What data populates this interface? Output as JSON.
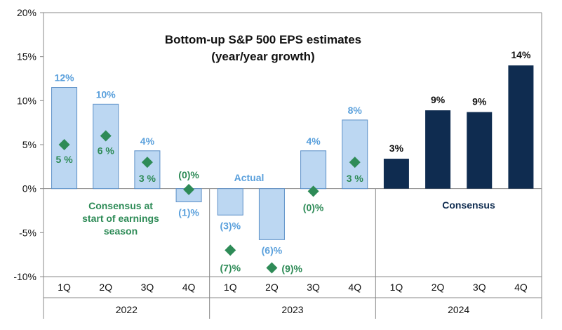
{
  "chart_data": {
    "type": "bar",
    "title": "Bottom-up S&P 500 EPS estimates",
    "subtitle": "(year/year growth)",
    "ylim": [
      -10,
      20
    ],
    "yticks": [
      "-10%",
      "-5%",
      "0%",
      "5%",
      "10%",
      "15%",
      "20%"
    ],
    "ytick_values": [
      -10,
      -5,
      0,
      5,
      10,
      15,
      20
    ],
    "quarters": [
      "1Q",
      "2Q",
      "3Q",
      "4Q",
      "1Q",
      "2Q",
      "3Q",
      "4Q",
      "1Q",
      "2Q",
      "3Q",
      "4Q"
    ],
    "years": [
      "2022",
      "2023",
      "2024"
    ],
    "colors": {
      "actual_fill": "#bcd7f2",
      "actual_edge": "#5b8fc7",
      "actual_label": "#5aa0dc",
      "consensus": "#0f2c50",
      "marker": "#2e8b57"
    },
    "series": [
      {
        "name": "Actual",
        "values": [
          11.5,
          9.6,
          4.3,
          -1.5,
          -3,
          -5.8,
          4.3,
          7.8,
          null,
          null,
          null,
          null
        ],
        "labels": [
          "12%",
          "10%",
          "4%",
          "(1)%",
          "(3)%",
          "(6)%",
          "4%",
          "8%",
          "",
          "",
          "",
          ""
        ]
      },
      {
        "name": "Consensus",
        "values": [
          null,
          null,
          null,
          null,
          null,
          null,
          null,
          null,
          3.4,
          8.9,
          8.7,
          14.0
        ],
        "labels": [
          "",
          "",
          "",
          "",
          "",
          "",
          "",
          "",
          "3%",
          "9%",
          "9%",
          "14%"
        ]
      },
      {
        "name": "Consensus at start of earnings season",
        "values": [
          5,
          6,
          3,
          -0.1,
          -7,
          -9,
          -0.3,
          3,
          null,
          null,
          null,
          null
        ],
        "labels": [
          "5 %",
          "6 %",
          "3 %",
          "(0)%",
          "(7)%",
          "(9)%",
          "(0)%",
          "3 %",
          "",
          "",
          "",
          ""
        ]
      }
    ],
    "annotations": {
      "actual": "Actual",
      "consensus": "Consensus",
      "consensus_start": [
        "Consensus at",
        "start of earnings",
        "season"
      ]
    }
  }
}
